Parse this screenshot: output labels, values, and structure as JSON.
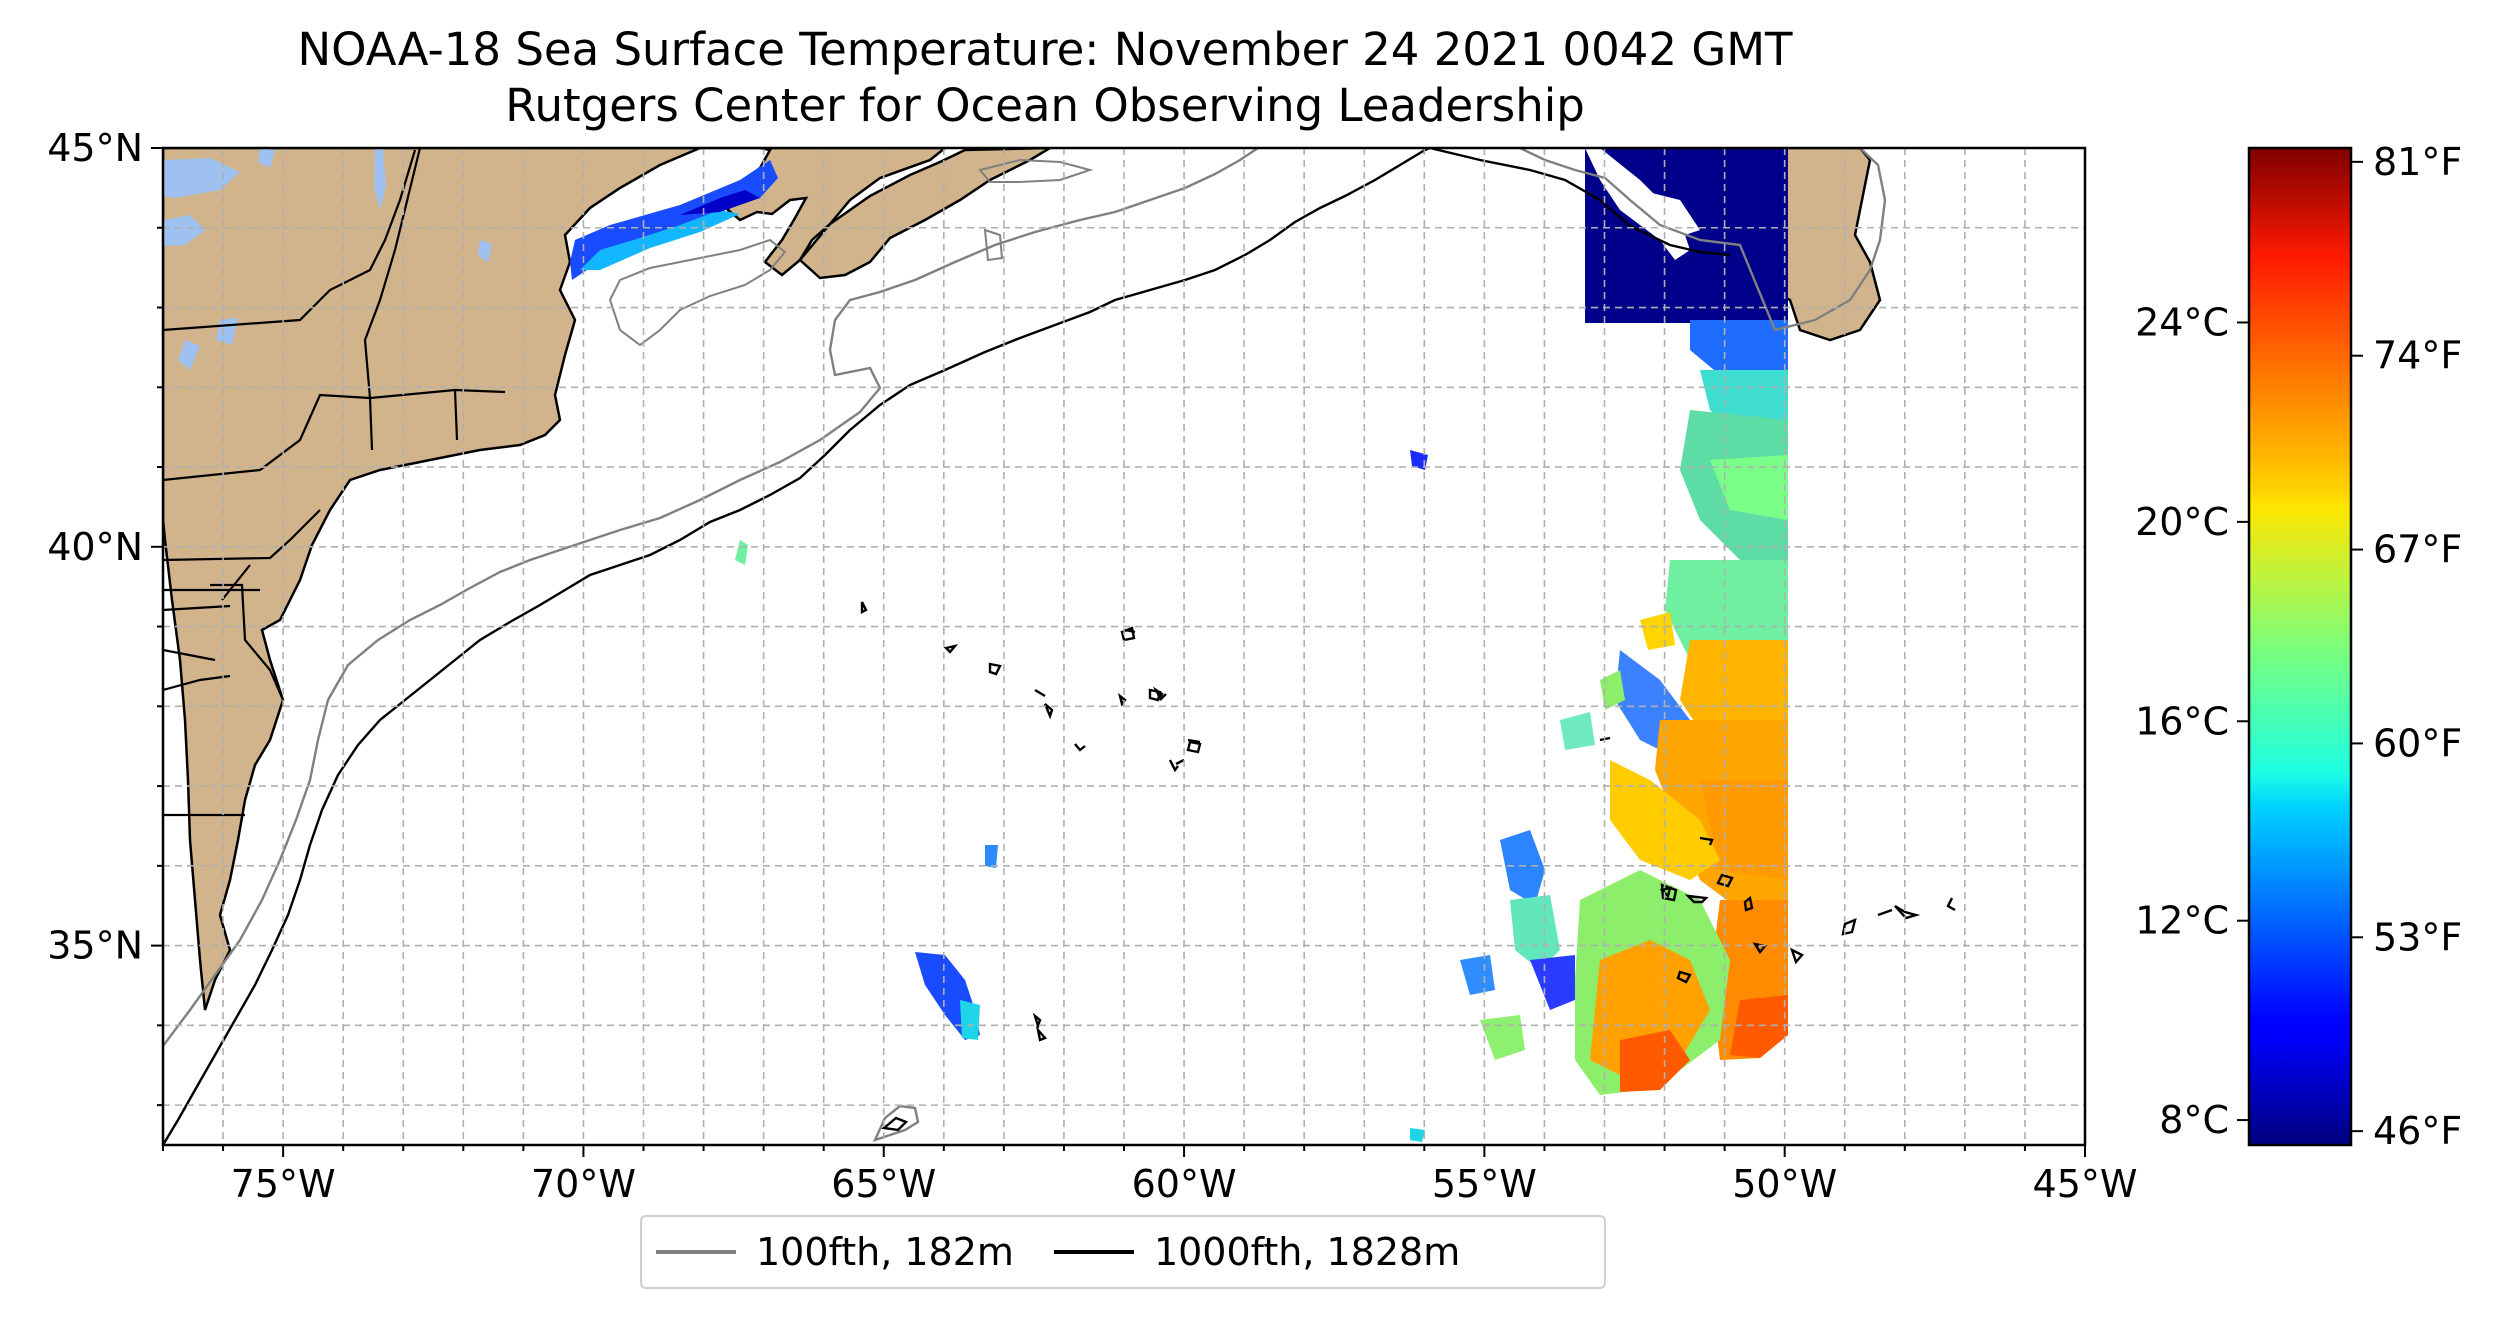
{
  "title": {
    "line1": "NOAA-18 Sea Surface Temperature: November 24 2021 0042 GMT",
    "line2": "Rutgers Center for Ocean Observing Leadership"
  },
  "map": {
    "lon_range": [
      -77,
      -45
    ],
    "lat_range": [
      32.5,
      45
    ],
    "lon_ticks": [
      {
        "value": -75,
        "label": "75°W"
      },
      {
        "value": -70,
        "label": "70°W"
      },
      {
        "value": -65,
        "label": "65°W"
      },
      {
        "value": -60,
        "label": "60°W"
      },
      {
        "value": -55,
        "label": "55°W"
      },
      {
        "value": -50,
        "label": "50°W"
      },
      {
        "value": -45,
        "label": "45°W"
      }
    ],
    "lat_ticks": [
      {
        "value": 35,
        "label": "35°N"
      },
      {
        "value": 40,
        "label": "40°N"
      },
      {
        "value": 45,
        "label": "45°N"
      }
    ],
    "grid": true,
    "land_color": "#d2b48c",
    "lake_color": "#9ec1f0",
    "contour_100_color": "#808080",
    "contour_1000_color": "#000000"
  },
  "colorbar": {
    "celsius_ticks": [
      {
        "value": 8,
        "label": "8°C"
      },
      {
        "value": 12,
        "label": "12°C"
      },
      {
        "value": 16,
        "label": "16°C"
      },
      {
        "value": 20,
        "label": "20°C"
      },
      {
        "value": 24,
        "label": "24°C"
      }
    ],
    "fahrenheit_ticks": [
      {
        "value": 46,
        "label": "46°F"
      },
      {
        "value": 53,
        "label": "53°F"
      },
      {
        "value": 60,
        "label": "60°F"
      },
      {
        "value": 67,
        "label": "67°F"
      },
      {
        "value": 74,
        "label": "74°F"
      },
      {
        "value": 81,
        "label": "81°F"
      }
    ],
    "range_f": [
      45.5,
      81.5
    ],
    "colormap": "jet"
  },
  "legend": {
    "items": [
      {
        "label": "100fth, 182m",
        "color": "#808080"
      },
      {
        "label": "1000fth, 1828m",
        "color": "#000000"
      }
    ]
  }
}
